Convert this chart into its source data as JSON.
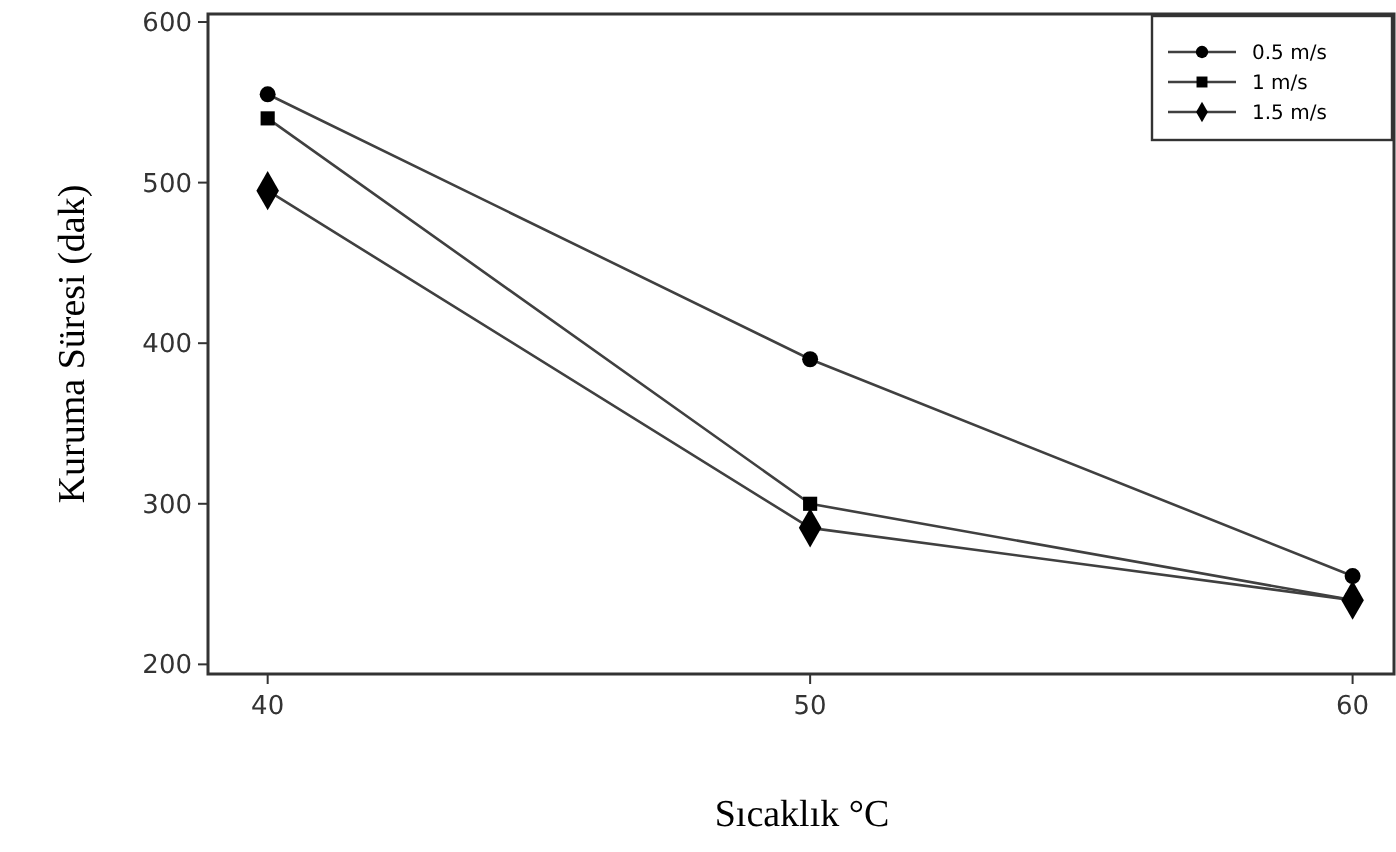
{
  "chart_data": {
    "type": "line",
    "xlabel": "Sıcaklık °C",
    "ylabel": "Kuruma Süresi (dak)",
    "x": [
      40,
      50,
      60
    ],
    "xlim": [
      38.9,
      60.8
    ],
    "xticks": [
      40,
      50,
      60
    ],
    "ylim": [
      194,
      605
    ],
    "yticks": [
      200,
      300,
      400,
      500,
      600
    ],
    "grid": false,
    "legend": "top right",
    "line_style": "solid",
    "series": [
      {
        "name": "0.5 m/s",
        "color": "#404040",
        "marker": "circle",
        "values": [
          555,
          390,
          255
        ]
      },
      {
        "name": "1 m/s",
        "color": "#404040",
        "marker": "square",
        "values": [
          540,
          300,
          240
        ]
      },
      {
        "name": "1.5 m/s",
        "color": "#404040",
        "marker": "diamond",
        "values": [
          495,
          285,
          240
        ]
      }
    ]
  }
}
